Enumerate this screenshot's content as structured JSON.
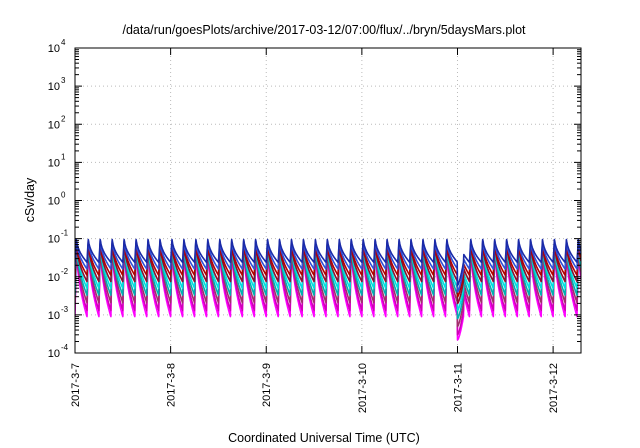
{
  "chart_data": {
    "type": "line",
    "title": "/data/run/goesPlots/archive/2017-03-12/07:00/flux/../bryn/5daysMars.plot",
    "xlabel": "Coordinated Universal Time (UTC)",
    "ylabel": "cSv/day",
    "y_scale": "log",
    "ylim": [
      0.0001,
      10000
    ],
    "y_ticks": [
      {
        "value": 0.0001,
        "base": "10",
        "exp": "-4"
      },
      {
        "value": 0.001,
        "base": "10",
        "exp": "-3"
      },
      {
        "value": 0.01,
        "base": "10",
        "exp": "-2"
      },
      {
        "value": 0.1,
        "base": "10",
        "exp": "-1"
      },
      {
        "value": 1,
        "base": "10",
        "exp": "0"
      },
      {
        "value": 10,
        "base": "10",
        "exp": "1"
      },
      {
        "value": 100,
        "base": "10",
        "exp": "2"
      },
      {
        "value": 1000,
        "base": "10",
        "exp": "3"
      },
      {
        "value": 10000,
        "base": "10",
        "exp": "4"
      }
    ],
    "xlim": [
      "2017-03-07T00:00",
      "2017-03-12T07:00"
    ],
    "x_ticks": [
      {
        "value": "2017-03-07T00:00",
        "label": "2017-3-7"
      },
      {
        "value": "2017-03-08T00:00",
        "label": "2017-3-8"
      },
      {
        "value": "2017-03-09T00:00",
        "label": "2017-3-9"
      },
      {
        "value": "2017-03-10T00:00",
        "label": "2017-3-10"
      },
      {
        "value": "2017-03-11T00:00",
        "label": "2017-3-11"
      },
      {
        "value": "2017-03-12T00:00",
        "label": "2017-3-12"
      }
    ],
    "grid": true,
    "legend": "none",
    "pattern": {
      "sawtooth_period_hours": 3,
      "dropout": {
        "start": "2017-03-11T00:00",
        "end": "2017-03-11T01:30"
      }
    },
    "series": [
      {
        "color": "#ff00ff",
        "peak": 0.075,
        "trough": 0.0009,
        "dip": 0.00022
      },
      {
        "color": "#d000b8",
        "peak": 0.08,
        "trough": 0.0013,
        "dip": 0.0003
      },
      {
        "color": "#a0306a",
        "peak": 0.085,
        "trough": 0.0021,
        "dip": 0.0005
      },
      {
        "color": "#00b0b0",
        "peak": 0.085,
        "trough": 0.0033,
        "dip": 0.0008
      },
      {
        "color": "#00e0e0",
        "peak": 0.09,
        "trough": 0.005,
        "dip": 0.0013
      },
      {
        "color": "#8a1030",
        "peak": 0.085,
        "trough": 0.0075,
        "dip": 0.002
      },
      {
        "color": "#b00000",
        "peak": 0.09,
        "trough": 0.011,
        "dip": 0.003
      },
      {
        "color": "#3050d8",
        "peak": 0.1,
        "trough": 0.016,
        "dip": 0.004
      },
      {
        "color": "#1a2aa8",
        "peak": 0.105,
        "trough": 0.024,
        "dip": 0.006
      }
    ]
  }
}
